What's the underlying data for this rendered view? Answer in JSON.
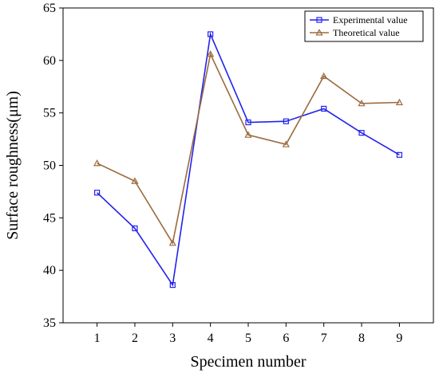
{
  "chart_data": {
    "type": "line",
    "title": "",
    "xlabel": "Specimen number",
    "ylabel": "Surface roughness(μm)",
    "categories": [
      "1",
      "2",
      "3",
      "4",
      "5",
      "6",
      "7",
      "8",
      "9"
    ],
    "x": [
      1,
      2,
      3,
      4,
      5,
      6,
      7,
      8,
      9
    ],
    "xlim": [
      0.1,
      9.9
    ],
    "ylim": [
      35,
      65
    ],
    "yticks": [
      35,
      40,
      45,
      50,
      55,
      60,
      65
    ],
    "grid": false,
    "legend_position": "top-right",
    "series": [
      {
        "name": "Experimental value",
        "color": "#2222ee",
        "marker": "square",
        "values": [
          47.4,
          44.0,
          38.6,
          62.5,
          54.1,
          54.2,
          55.4,
          53.1,
          51.0
        ]
      },
      {
        "name": "Theoretical value",
        "color": "#9c6a3e",
        "marker": "triangle",
        "values": [
          50.2,
          48.5,
          42.6,
          60.6,
          52.9,
          52.0,
          58.5,
          55.9,
          56.0
        ]
      }
    ]
  }
}
